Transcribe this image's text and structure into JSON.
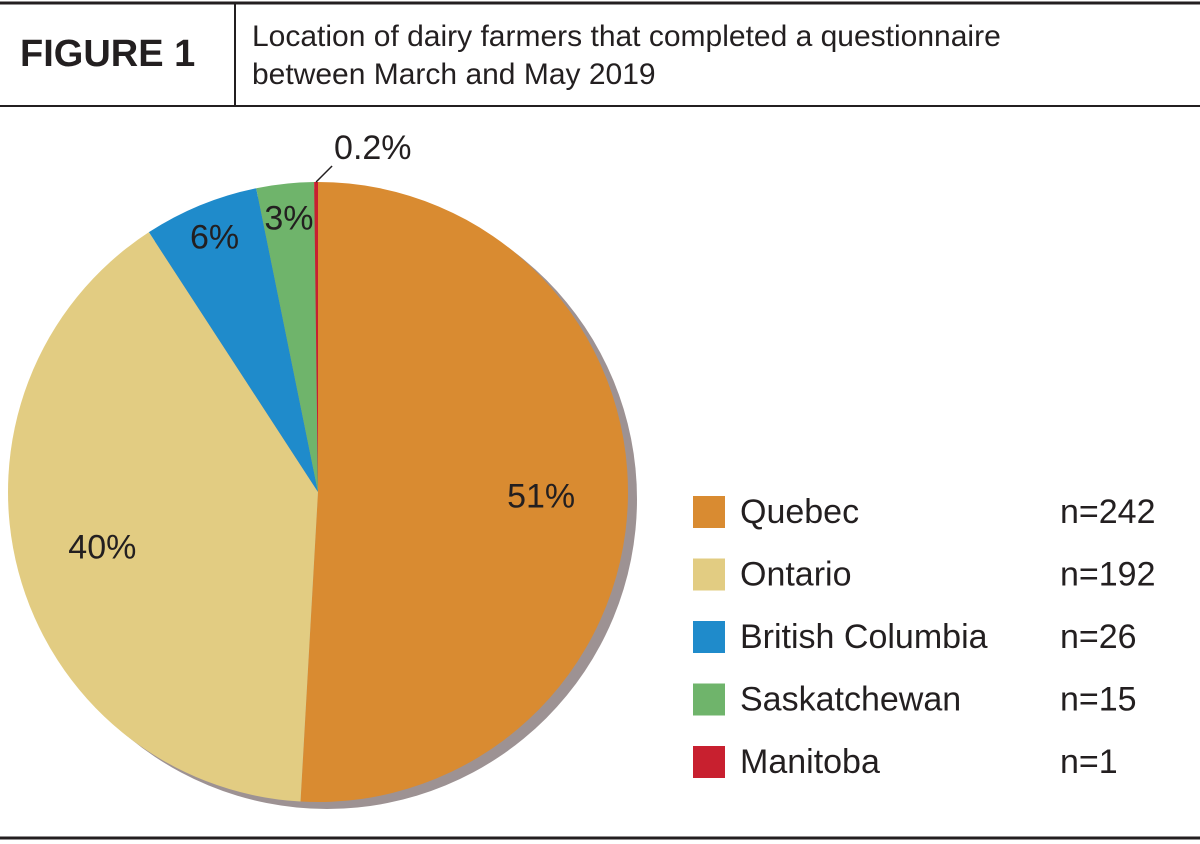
{
  "chart_data": {
    "type": "pie",
    "figure_label": "FIGURE 1",
    "title": [
      "Location of dairy farmers that completed a questionnaire",
      "between March and May 2019"
    ],
    "categories": [
      "Quebec",
      "Ontario",
      "British Columbia",
      "Saskatchewan",
      "Manitoba"
    ],
    "values": [
      51,
      40,
      6,
      3,
      0.2
    ],
    "value_labels": [
      "51%",
      "40%",
      "6%",
      "3%",
      "0.2%"
    ],
    "counts": [
      "n=242",
      "n=192",
      "n=26",
      "n=15",
      "n=1"
    ],
    "colors": [
      "#d98b31",
      "#e2cc82",
      "#1f8bcb",
      "#6fb46b",
      "#c8202f"
    ],
    "legend": "right"
  }
}
